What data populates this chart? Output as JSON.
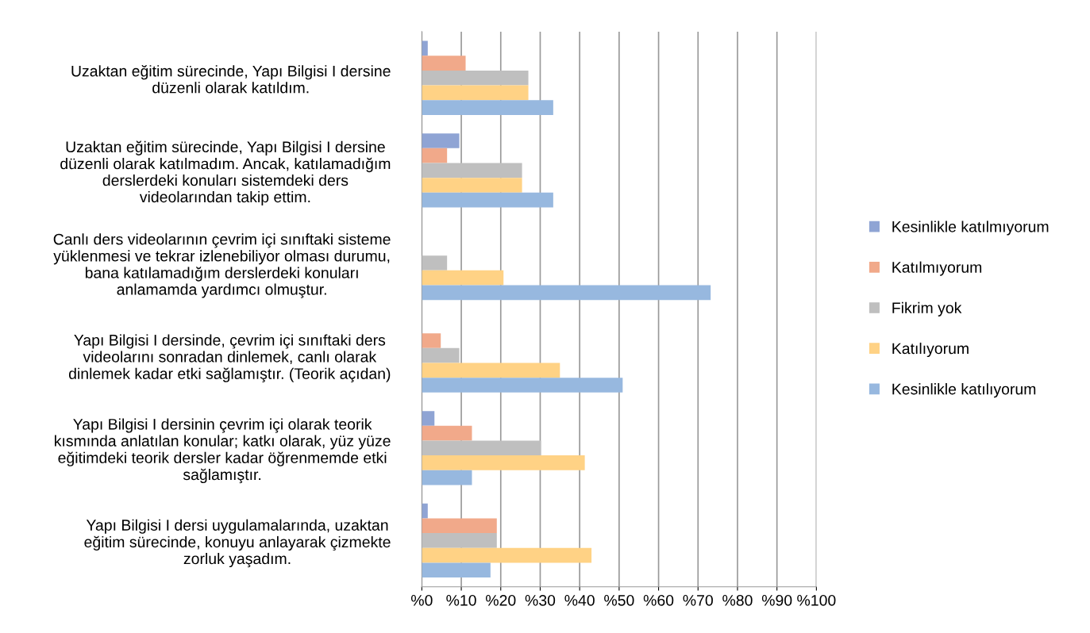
{
  "chart_data": {
    "type": "bar",
    "orientation": "horizontal",
    "categories": [
      "Uzaktan eğitim sürecinde, Yapı Bilgisi I dersine\ndüzenli olarak katıldım.",
      "Uzaktan eğitim sürecinde, Yapı Bilgisi I dersine\ndüzenli olarak katılmadım. Ancak, katılamadığım\nderslerdeki konuları sistemdeki ders\nvideolarından takip ettim.",
      "Canlı ders videolarının çevrim içi sınıftaki sisteme\nyüklenmesi ve tekrar izlenebiliyor olması durumu,\nbana katılamadığım derslerdeki konuları\nanlamamda yardımcı olmuştur.",
      "Yapı Bilgisi I dersinde, çevrim içi sınıftaki ders\nvideolarını sonradan dinlemek, canlı olarak\ndinlemek kadar etki sağlamıştır. (Teorik açıdan)",
      "Yapı Bilgisi I dersinin çevrim içi olarak teorik\nkısmında anlatılan konular; katkı olarak, yüz yüze\neğitimdeki teorik dersler kadar öğrenmemde etki\nsağlamıştır.",
      "Yapı Bilgisi I dersi uygulamalarında, uzaktan\neğitim sürecinde, konuyu anlayarak çizmekte\nzorluk yaşadım."
    ],
    "series": [
      {
        "name": "Kesinlikle katılmıyorum",
        "color": "#8fa4d4",
        "values": [
          1.5,
          9.5,
          0,
          0,
          3.2,
          1.5
        ]
      },
      {
        "name": "Katılmıyorum",
        "color": "#f1a98a",
        "values": [
          11.1,
          6.4,
          0,
          4.8,
          12.7,
          19.0
        ]
      },
      {
        "name": "Fikrim yok",
        "color": "#bfbfbf",
        "values": [
          27.0,
          25.4,
          6.4,
          9.5,
          30.2,
          19.0
        ]
      },
      {
        "name": "Katılıyorum",
        "color": "#ffd285",
        "values": [
          27.0,
          25.4,
          20.7,
          35.0,
          41.3,
          43.0
        ]
      },
      {
        "name": "Kesinlikle katılıyorum",
        "color": "#97b8df",
        "values": [
          33.3,
          33.3,
          73.2,
          50.9,
          12.7,
          17.4
        ]
      }
    ],
    "xlim": [
      0,
      100
    ],
    "xticks": [
      {
        "value": 0,
        "label": "%0"
      },
      {
        "value": 10,
        "label": "%10"
      },
      {
        "value": 20,
        "label": "%20"
      },
      {
        "value": 30,
        "label": "%30"
      },
      {
        "value": 40,
        "label": "%40"
      },
      {
        "value": 50,
        "label": "%50"
      },
      {
        "value": 60,
        "label": "%60"
      },
      {
        "value": 70,
        "label": "%70"
      },
      {
        "value": 80,
        "label": "%80"
      },
      {
        "value": 90,
        "label": "%90"
      },
      {
        "value": 100,
        "label": "%100"
      }
    ],
    "grid": "x",
    "legend": "right"
  }
}
